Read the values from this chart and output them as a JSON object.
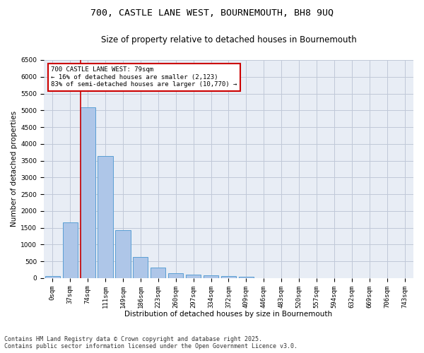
{
  "title1": "700, CASTLE LANE WEST, BOURNEMOUTH, BH8 9UQ",
  "title2": "Size of property relative to detached houses in Bournemouth",
  "xlabel": "Distribution of detached houses by size in Bournemouth",
  "ylabel": "Number of detached properties",
  "categories": [
    "0sqm",
    "37sqm",
    "74sqm",
    "111sqm",
    "149sqm",
    "186sqm",
    "223sqm",
    "260sqm",
    "297sqm",
    "334sqm",
    "372sqm",
    "409sqm",
    "446sqm",
    "483sqm",
    "520sqm",
    "557sqm",
    "594sqm",
    "632sqm",
    "669sqm",
    "706sqm",
    "743sqm"
  ],
  "values": [
    60,
    1650,
    5100,
    3630,
    1430,
    620,
    310,
    150,
    105,
    80,
    60,
    30,
    0,
    0,
    0,
    0,
    0,
    0,
    0,
    0,
    0
  ],
  "bar_color": "#aec6e8",
  "bar_edge_color": "#5a9fd4",
  "vline_color": "#cc0000",
  "annotation_text": "700 CASTLE LANE WEST: 79sqm\n← 16% of detached houses are smaller (2,123)\n83% of semi-detached houses are larger (10,770) →",
  "annotation_box_color": "#cc0000",
  "ylim": [
    0,
    6500
  ],
  "yticks": [
    0,
    500,
    1000,
    1500,
    2000,
    2500,
    3000,
    3500,
    4000,
    4500,
    5000,
    5500,
    6000,
    6500
  ],
  "grid_color": "#c0c8d8",
  "bg_color": "#e8edf5",
  "footer": "Contains HM Land Registry data © Crown copyright and database right 2025.\nContains public sector information licensed under the Open Government Licence v3.0.",
  "title_fontsize": 9.5,
  "subtitle_fontsize": 8.5,
  "axis_label_fontsize": 7.5,
  "tick_fontsize": 6.5,
  "footer_fontsize": 6,
  "ann_fontsize": 6.5
}
